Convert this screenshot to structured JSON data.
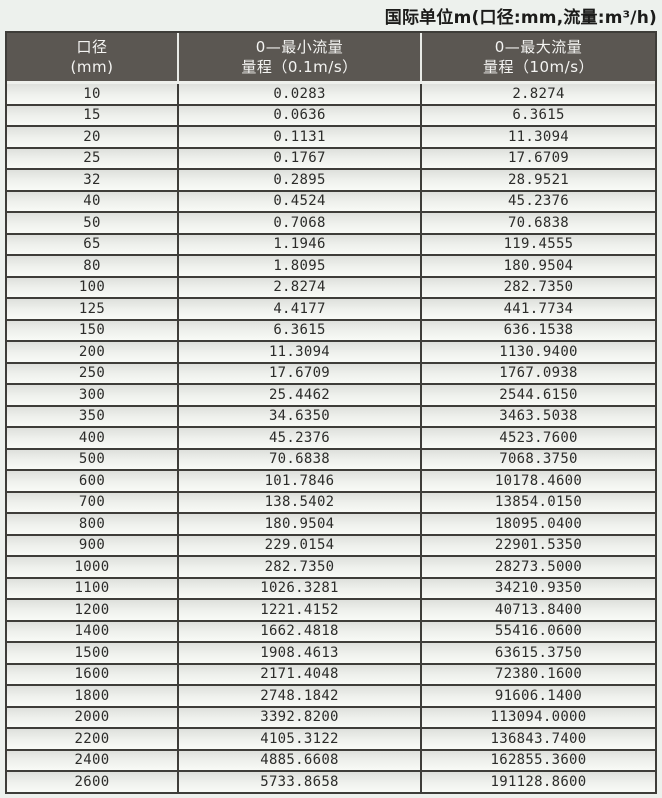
{
  "title": "国际单位m(口径:mm,流量:m³/h)",
  "colors": {
    "header_bg": "#5b5752",
    "header_text": "#f4f4f2",
    "border_dark": "#3e3d39",
    "page_bg": "#edf1ed",
    "row_text": "#2c2c2a"
  },
  "table": {
    "columns": [
      {
        "line1": "口径",
        "line2": "(mm)"
      },
      {
        "line1": "0—最小流量",
        "line2": "量程（0.1m/s）"
      },
      {
        "line1": "0—最大流量",
        "line2": "量程（10m/s）"
      }
    ],
    "rows": [
      [
        "10",
        "0.0283",
        "2.8274"
      ],
      [
        "15",
        "0.0636",
        "6.3615"
      ],
      [
        "20",
        "0.1131",
        "11.3094"
      ],
      [
        "25",
        "0.1767",
        "17.6709"
      ],
      [
        "32",
        "0.2895",
        "28.9521"
      ],
      [
        "40",
        "0.4524",
        "45.2376"
      ],
      [
        "50",
        "0.7068",
        "70.6838"
      ],
      [
        "65",
        "1.1946",
        "119.4555"
      ],
      [
        "80",
        "1.8095",
        "180.9504"
      ],
      [
        "100",
        "2.8274",
        "282.7350"
      ],
      [
        "125",
        "4.4177",
        "441.7734"
      ],
      [
        "150",
        "6.3615",
        "636.1538"
      ],
      [
        "200",
        "11.3094",
        "1130.9400"
      ],
      [
        "250",
        "17.6709",
        "1767.0938"
      ],
      [
        "300",
        "25.4462",
        "2544.6150"
      ],
      [
        "350",
        "34.6350",
        "3463.5038"
      ],
      [
        "400",
        "45.2376",
        "4523.7600"
      ],
      [
        "500",
        "70.6838",
        "7068.3750"
      ],
      [
        "600",
        "101.7846",
        "10178.4600"
      ],
      [
        "700",
        "138.5402",
        "13854.0150"
      ],
      [
        "800",
        "180.9504",
        "18095.0400"
      ],
      [
        "900",
        "229.0154",
        "22901.5350"
      ],
      [
        "1000",
        "282.7350",
        "28273.5000"
      ],
      [
        "1100",
        "1026.3281",
        "34210.9350"
      ],
      [
        "1200",
        "1221.4152",
        "40713.8400"
      ],
      [
        "1400",
        "1662.4818",
        "55416.0600"
      ],
      [
        "1500",
        "1908.4613",
        "63615.3750"
      ],
      [
        "1600",
        "2171.4048",
        "72380.1600"
      ],
      [
        "1800",
        "2748.1842",
        "91606.1400"
      ],
      [
        "2000",
        "3392.8200",
        "113094.0000"
      ],
      [
        "2200",
        "4105.3122",
        "136843.7400"
      ],
      [
        "2400",
        "4885.6608",
        "162855.3600"
      ],
      [
        "2600",
        "5733.8658",
        "191128.8600"
      ]
    ]
  }
}
